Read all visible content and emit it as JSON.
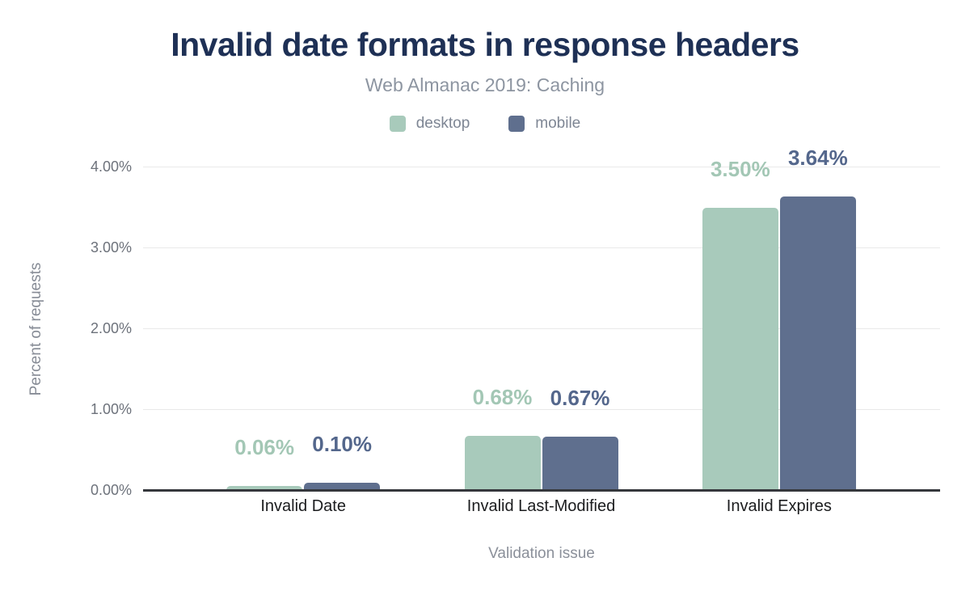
{
  "chart_data": {
    "type": "bar",
    "title": "Invalid date formats in response headers",
    "subtitle": "Web Almanac 2019: Caching",
    "xlabel": "Validation issue",
    "ylabel": "Percent of requests",
    "categories": [
      "Invalid Date",
      "Invalid Last-Modified",
      "Invalid Expires"
    ],
    "series": [
      {
        "name": "desktop",
        "color": "#a8cabb",
        "label_color": "#a3c7b5",
        "values": [
          0.06,
          0.68,
          3.5
        ],
        "labels": [
          "0.06%",
          "0.68%",
          "3.50%"
        ]
      },
      {
        "name": "mobile",
        "color": "#5f6f8e",
        "label_color": "#54678c",
        "values": [
          0.1,
          0.67,
          3.64
        ],
        "labels": [
          "0.10%",
          "0.67%",
          "3.64%"
        ]
      }
    ],
    "ylim": [
      0,
      4
    ],
    "yticks": [
      "0.00%",
      "1.00%",
      "2.00%",
      "3.00%",
      "4.00%"
    ],
    "grid": true,
    "legend_position": "top",
    "colors": {
      "title": "#1e3055",
      "subtitle": "#8d95a1",
      "axis_text": "#6d727b",
      "category_text": "#1b1c1e",
      "gridline": "#e9e9e9",
      "baseline": "#35373c"
    }
  }
}
